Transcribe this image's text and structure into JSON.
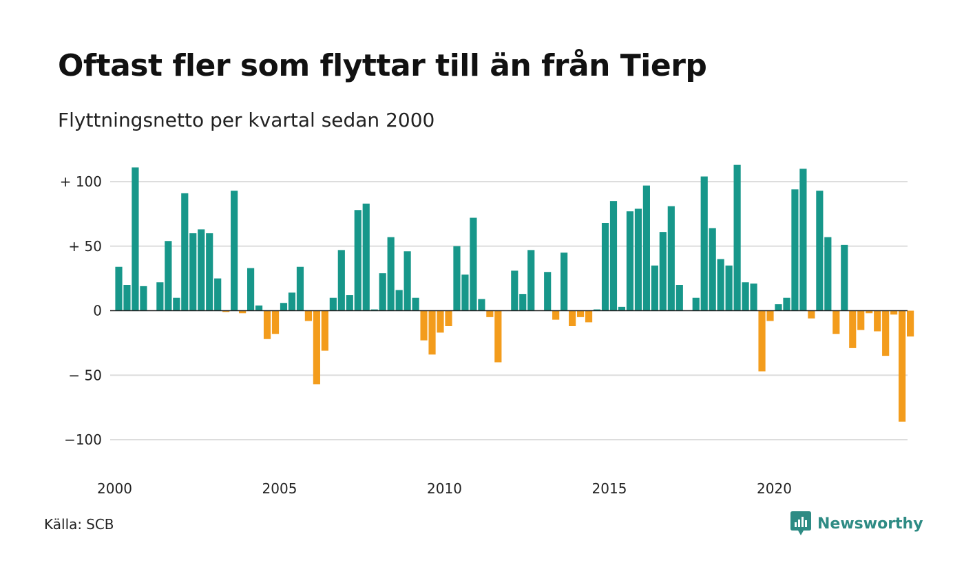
{
  "header": {
    "title": "Oftast fler som flyttar till än från Tierp",
    "subtitle": "Flyttningsnetto per kvartal sedan 2000"
  },
  "footer": {
    "source_label": "Källa:",
    "source_value": "SCB",
    "brand": "Newsworthy"
  },
  "colors": {
    "positive": "#17978a",
    "negative": "#f39c1c",
    "grid": "#dddddd",
    "zero_line": "#222222",
    "brand": "#2e8b84"
  },
  "chart_data": {
    "type": "bar",
    "x_start": 2000,
    "bars_per_year": 4,
    "x_ticks": [
      "2000",
      "2005",
      "2010",
      "2015",
      "2020"
    ],
    "y_ticks": [
      {
        "value": 100,
        "label": "+ 100"
      },
      {
        "value": 50,
        "label": "+  50"
      },
      {
        "value": 0,
        "label": "0"
      },
      {
        "value": -50,
        "label": "− 50"
      },
      {
        "value": -100,
        "label": "−100"
      }
    ],
    "ylim": [
      -115,
      115
    ],
    "grid": true,
    "values": [
      34,
      20,
      111,
      19,
      0,
      22,
      54,
      10,
      91,
      60,
      63,
      60,
      25,
      -1,
      93,
      -2,
      33,
      4,
      -22,
      -18,
      6,
      14,
      34,
      -8,
      -57,
      -31,
      10,
      47,
      12,
      78,
      83,
      1,
      29,
      57,
      16,
      46,
      10,
      -23,
      -34,
      -17,
      -12,
      50,
      28,
      72,
      9,
      -5,
      -40,
      0,
      31,
      13,
      47,
      0,
      30,
      -7,
      45,
      -12,
      -5,
      -9,
      1,
      68,
      85,
      3,
      77,
      79,
      97,
      35,
      61,
      81,
      20,
      0,
      10,
      104,
      64,
      40,
      35,
      113,
      22,
      21,
      -47,
      -8,
      5,
      10,
      94,
      110,
      -6,
      93,
      57,
      -18,
      51,
      -29,
      -15,
      -2,
      -16,
      -35,
      -3,
      -86,
      -20
    ]
  }
}
